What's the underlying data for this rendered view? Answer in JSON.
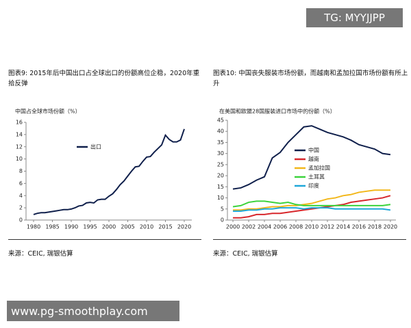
{
  "watermark": "TG: MYYJJPP",
  "site_banner": "www.pg-smoothplay.com",
  "chart_data": [
    {
      "type": "line",
      "title": "图表9: 2015年后中国出口占全球出口的份额高位企稳，2020年重拾反弹",
      "subtitle": "中国占全球市场份额（%）",
      "source": "来源：CEIC, 瑞银估算",
      "x": [
        1980,
        1981,
        1982,
        1983,
        1984,
        1985,
        1986,
        1987,
        1988,
        1989,
        1990,
        1991,
        1992,
        1993,
        1994,
        1995,
        1996,
        1997,
        1998,
        1999,
        2000,
        2001,
        2002,
        2003,
        2004,
        2005,
        2006,
        2007,
        2008,
        2009,
        2010,
        2011,
        2012,
        2013,
        2014,
        2015,
        2016,
        2017,
        2018,
        2019,
        2020
      ],
      "series": [
        {
          "name": "出口",
          "color": "#0f1f4b",
          "values": [
            0.9,
            1.1,
            1.2,
            1.2,
            1.3,
            1.4,
            1.5,
            1.6,
            1.7,
            1.7,
            1.8,
            2.0,
            2.3,
            2.4,
            2.8,
            2.9,
            2.8,
            3.3,
            3.4,
            3.4,
            3.9,
            4.3,
            5.0,
            5.8,
            6.4,
            7.2,
            8.0,
            8.7,
            8.8,
            9.6,
            10.3,
            10.4,
            11.1,
            11.7,
            12.3,
            13.9,
            13.2,
            12.8,
            12.8,
            13.1,
            14.9
          ]
        }
      ],
      "xlim": [
        1978,
        2022
      ],
      "xticks": [
        1980,
        1985,
        1990,
        1995,
        2000,
        2005,
        2010,
        2015,
        2020
      ],
      "ylim": [
        0,
        16
      ],
      "yticks": [
        0,
        2,
        4,
        6,
        8,
        10,
        12,
        14,
        16
      ],
      "legend": "upper-left"
    },
    {
      "type": "line",
      "title": "图表10: 中国丧失服装市场份额，而越南和孟加拉国市场份额有所上升",
      "subtitle": "在美国和欧盟28国服装进口市场中的份额（%）",
      "source": "来源：CEIC, 瑞银估算",
      "x": [
        2000,
        2001,
        2002,
        2003,
        2004,
        2005,
        2006,
        2007,
        2008,
        2009,
        2010,
        2011,
        2012,
        2013,
        2014,
        2015,
        2016,
        2017,
        2018,
        2019,
        2020
      ],
      "series": [
        {
          "name": "中国",
          "color": "#0f1f4b",
          "values": [
            14,
            14.5,
            16,
            18,
            19.5,
            28,
            30.5,
            35,
            38.5,
            42,
            42.5,
            41,
            39.5,
            38.5,
            37.5,
            36,
            34,
            33,
            32,
            30,
            29.5
          ]
        },
        {
          "name": "越南",
          "color": "#d7262b",
          "values": [
            1,
            1,
            1.5,
            2.5,
            2.5,
            3,
            3,
            3.5,
            4,
            4.5,
            5,
            5.5,
            6,
            6.5,
            7,
            8,
            8.5,
            9,
            9.5,
            10,
            11
          ]
        },
        {
          "name": "孟加拉国",
          "color": "#f2b71a",
          "values": [
            4.5,
            4.5,
            5,
            5,
            5.5,
            6,
            6,
            6.5,
            6.5,
            7,
            7.5,
            8.5,
            9.5,
            10,
            11,
            11.5,
            12.5,
            13,
            13.5,
            13.5,
            13.5
          ]
        },
        {
          "name": "土耳其",
          "color": "#3cd33c",
          "values": [
            6,
            6.5,
            8,
            8.5,
            8.5,
            8,
            7.5,
            8,
            7,
            6.5,
            6.5,
            6.5,
            6.5,
            6.5,
            6.5,
            6.5,
            6.5,
            6.5,
            6.5,
            6.5,
            7
          ]
        },
        {
          "name": "印度",
          "color": "#1ea7d8",
          "values": [
            4,
            4,
            4.5,
            4.5,
            5,
            5,
            5.5,
            5.5,
            5.5,
            5,
            5.5,
            5.5,
            5.5,
            5,
            5,
            5,
            5,
            5,
            5,
            5,
            4.5
          ]
        }
      ],
      "xlim": [
        1999.3,
        2020.7
      ],
      "xticks": [
        2000,
        2002,
        2004,
        2006,
        2008,
        2010,
        2012,
        2014,
        2016,
        2018,
        2020
      ],
      "ylim": [
        0,
        45
      ],
      "yticks": [
        0,
        5,
        10,
        15,
        20,
        25,
        30,
        35,
        40,
        45
      ],
      "legend": "center-left"
    }
  ]
}
